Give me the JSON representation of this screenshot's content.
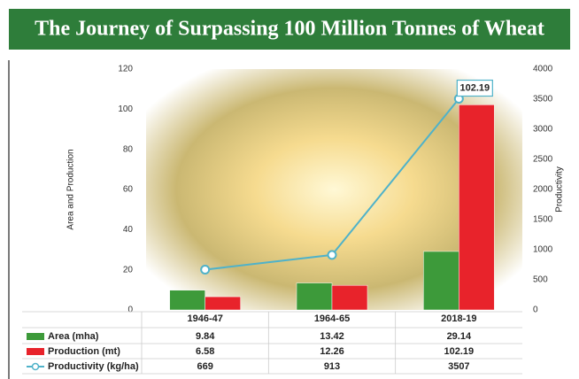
{
  "chart_data": {
    "type": "bar",
    "title": "The Journey of Surpassing 100 Million Tonnes of Wheat",
    "ylabel": "Area and Production",
    "y2label": "Productivity",
    "categories": [
      "1946-47",
      "1964-65",
      "2018-19"
    ],
    "series": [
      {
        "name": "Area (mha)",
        "color": "#3d9a3a",
        "values": [
          9.84,
          13.42,
          29.14
        ]
      },
      {
        "name": "Production (mt)",
        "color": "#e8232b",
        "values": [
          6.58,
          12.26,
          102.19
        ]
      },
      {
        "name": "Productivity (kg/ha)",
        "color": "#4fb2c9",
        "axis": "y2",
        "type": "line",
        "values": [
          669,
          913,
          3507
        ]
      }
    ],
    "ylim": [
      0,
      120
    ],
    "yticks": [
      0,
      20,
      40,
      60,
      80,
      100,
      120
    ],
    "y2lim": [
      0,
      4000
    ],
    "y2ticks": [
      0,
      500,
      1000,
      1500,
      2000,
      2500,
      3000,
      3500,
      4000
    ]
  }
}
